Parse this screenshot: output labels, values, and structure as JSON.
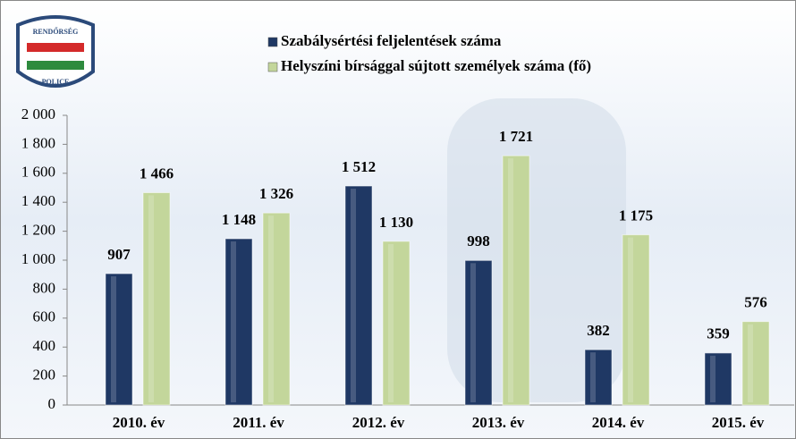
{
  "logo": {
    "top": "RENDŐRSÉG",
    "bottom": "POLICE"
  },
  "chart_data": {
    "type": "bar",
    "categories": [
      "2010. év",
      "2011. év",
      "2012. év",
      "2013. év",
      "2014. év",
      "2015. év"
    ],
    "series": [
      {
        "name": "Szabálysértési feljelentések száma",
        "color": "#1f3864",
        "values": [
          907,
          1148,
          1512,
          998,
          382,
          359
        ],
        "value_labels": [
          "907",
          "1 148",
          "1 512",
          "998",
          "382",
          "359"
        ]
      },
      {
        "name": "Helyszíni bírsággal sújtott személyek száma (fő)",
        "color": "#c3d69b",
        "values": [
          1466,
          1326,
          1130,
          1721,
          1175,
          576
        ],
        "value_labels": [
          "1 466",
          "1 326",
          "1 130",
          "1 721",
          "1 175",
          "576"
        ]
      }
    ],
    "ylim": [
      0,
      2000
    ],
    "yticks": [
      0,
      200,
      400,
      600,
      800,
      {
        "value": 1000,
        "label": "1 000"
      },
      {
        "value": 1200,
        "label": "1 200"
      },
      {
        "value": 1400,
        "label": "1 400"
      },
      {
        "value": 1600,
        "label": "1 600"
      },
      {
        "value": 1800,
        "label": "1 800"
      },
      {
        "value": 2000,
        "label": "2 000"
      }
    ],
    "legend": "top"
  }
}
